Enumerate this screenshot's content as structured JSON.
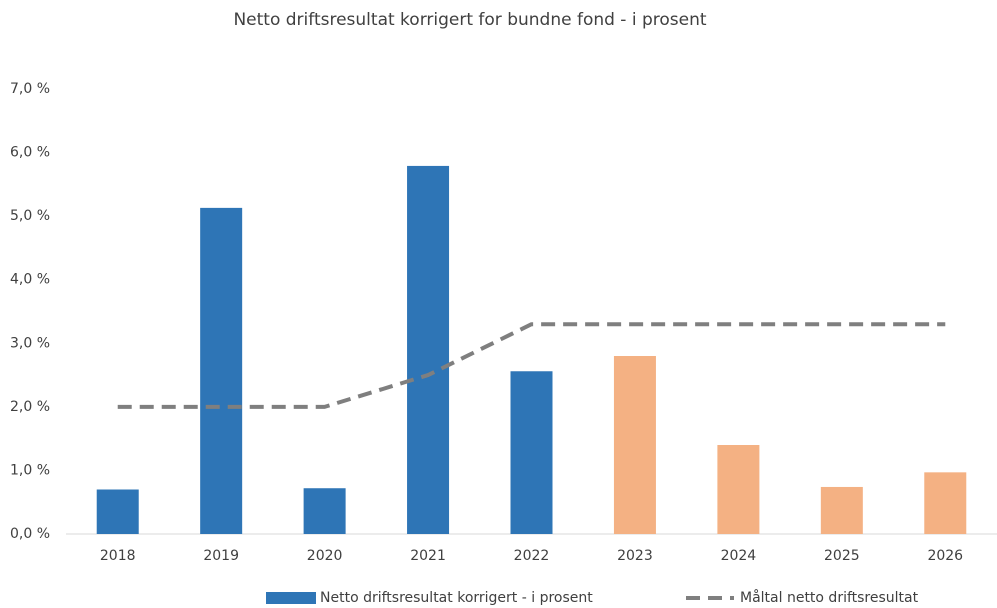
{
  "chart_data": {
    "type": "bar",
    "title": "Netto driftsresultat korrigert for bundne fond -  i prosent",
    "categories": [
      "2018",
      "2019",
      "2020",
      "2021",
      "2022",
      "2023",
      "2024",
      "2025",
      "2026"
    ],
    "series": [
      {
        "name": "Netto driftsresultat korrigert - i prosent",
        "type": "bar",
        "color": "#2e75b6",
        "colors": [
          "#2e75b6",
          "#2e75b6",
          "#2e75b6",
          "#2e75b6",
          "#2e75b6",
          "#f4b183",
          "#f4b183",
          "#f4b183",
          "#f4b183"
        ],
        "values": [
          0.7,
          5.13,
          0.72,
          5.79,
          2.56,
          2.8,
          1.4,
          0.74,
          0.97
        ]
      },
      {
        "name": "Måltal netto driftsresultat",
        "type": "line",
        "color": "#7f7f7f",
        "dashed": true,
        "values": [
          2.0,
          2.0,
          2.0,
          2.5,
          3.3,
          3.3,
          3.3,
          3.3,
          3.3
        ]
      }
    ],
    "ylim": [
      0,
      7
    ],
    "yticks": [
      {
        "value": 0,
        "label": "0,0 %"
      },
      {
        "value": 1,
        "label": "1,0 %"
      },
      {
        "value": 2,
        "label": "2,0 %"
      },
      {
        "value": 3,
        "label": "3,0 %"
      },
      {
        "value": 4,
        "label": "4,0 %"
      },
      {
        "value": 5,
        "label": "5,0 %"
      },
      {
        "value": 6,
        "label": "6,0 %"
      },
      {
        "value": 7,
        "label": "7,0 %"
      }
    ],
    "grid": false,
    "legend": "bottom"
  }
}
